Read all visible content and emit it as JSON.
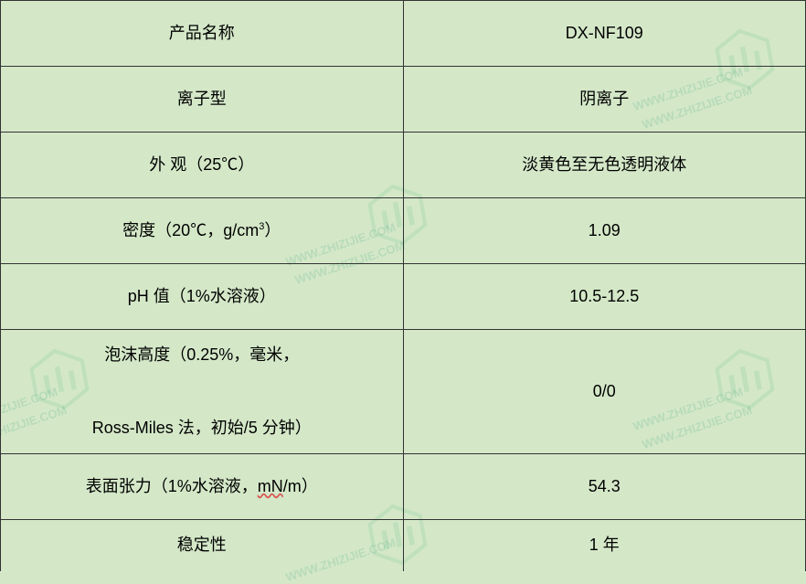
{
  "table": {
    "rows": [
      {
        "label": "产品名称",
        "value": "DX-NF109",
        "labelHtml": "产品名称"
      },
      {
        "label": "离子型",
        "value": "阴离子",
        "labelHtml": "离子型"
      },
      {
        "label": "外 观（25℃）",
        "value": "淡黄色至无色透明液体",
        "labelHtml": "外 观（25℃）"
      },
      {
        "label": "密度（20℃，g/cm3）",
        "value": "1.09",
        "labelHtml": "密度（20℃，g/cm<sup>3</sup>）"
      },
      {
        "label": "pH 值（1%水溶液）",
        "value": "10.5-12.5",
        "labelHtml": "pH 值（1%水溶液）"
      },
      {
        "label": "泡沫高度（0.25%，毫米，Ross-Miles 法，初始/5 分钟）",
        "value": "0/0",
        "labelHtml": "泡沫高度（0.25%，毫米，<br><br>Ross-Miles 法，初始/5 分钟）"
      },
      {
        "label": "表面张力（1%水溶液，mN/m）",
        "value": "54.3",
        "labelHtml": "表面张力（1%水溶液，<span class='underline-red'>mN</span>/m）"
      },
      {
        "label": "稳定性",
        "value": "1 年",
        "labelHtml": "稳定性"
      }
    ],
    "row_heights": [
      "row-short",
      "row-short",
      "row-short",
      "row-short",
      "row-short",
      "row-tall",
      "row-short",
      "row-last"
    ]
  },
  "style": {
    "background_color": "#d4e8c8",
    "border_color": "#333333",
    "text_color": "#000000",
    "font_size": 18,
    "watermark_text": "WWW.ZHIZIJIE.COM",
    "watermark_color": "rgba(100,180,140,0.25)"
  }
}
